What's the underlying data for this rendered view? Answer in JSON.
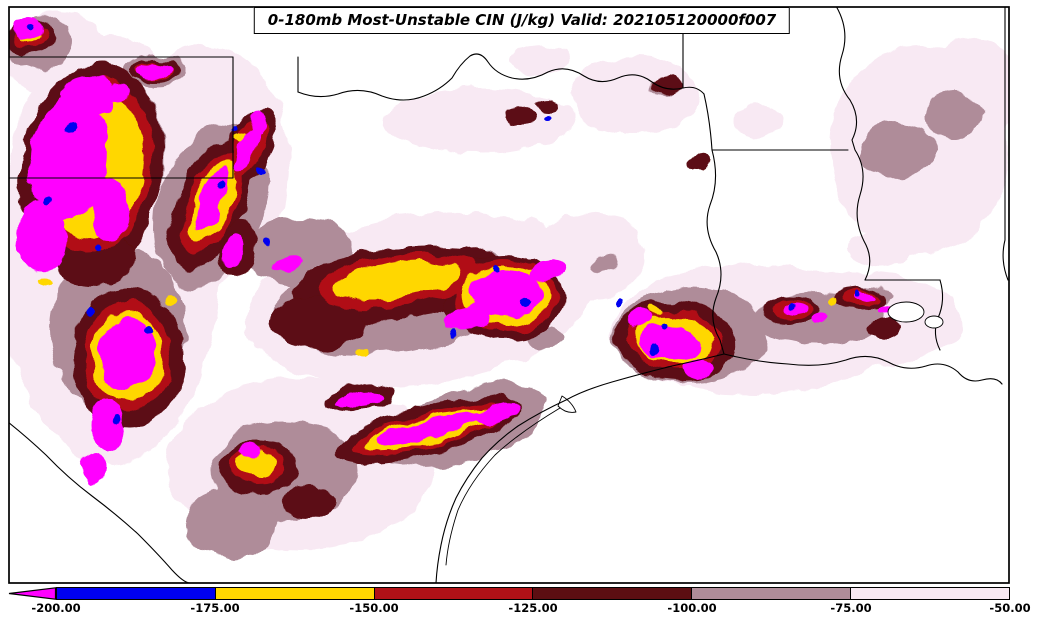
{
  "header": {
    "title": "0-180mb Most-Unstable CIN (J/kg) Valid: 202105120000f007"
  },
  "field": {
    "layer": "0-180mb",
    "parameter": "Most-Unstable CIN",
    "units": "J/kg",
    "valid_time": "202105120000f007"
  },
  "colorbar": {
    "orientation": "horizontal",
    "tick_labels": [
      "-200.00",
      "-175.00",
      "-150.00",
      "-125.00",
      "-100.00",
      "-75.00",
      "-50.00"
    ],
    "underflow_arrow_color": "#FF00FF",
    "segment_colors": [
      "#0000F0",
      "#FFD700",
      "#B11117",
      "#5C0E12",
      "#AF8C99",
      "#F8E9F3"
    ],
    "value_color_scale": [
      {
        "range": "< -200",
        "color": "#FF00FF"
      },
      {
        "range": "-200 to -175",
        "color": "#0000F0"
      },
      {
        "range": "-175 to -150",
        "color": "#FFD700"
      },
      {
        "range": "-150 to -125",
        "color": "#B11117"
      },
      {
        "range": "-125 to -100",
        "color": "#5C0E12"
      },
      {
        "range": "-100 to -75",
        "color": "#AF8C99"
      },
      {
        "range": "-75 to -50",
        "color": "#F8E9F3"
      }
    ]
  }
}
